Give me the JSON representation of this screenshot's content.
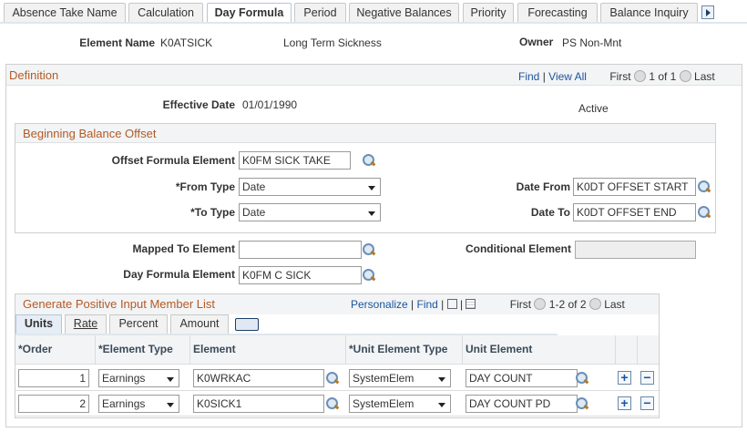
{
  "tabs": [
    {
      "label": "Absence Take Name",
      "active": false
    },
    {
      "label": "Calculation",
      "active": false
    },
    {
      "label": "Day Formula",
      "active": true
    },
    {
      "label": "Period",
      "active": false
    },
    {
      "label": "Negative Balances",
      "active": false
    },
    {
      "label": "Priority",
      "active": false
    },
    {
      "label": "Forecasting",
      "active": false
    },
    {
      "label": "Balance Inquiry",
      "active": false
    }
  ],
  "header": {
    "element_name_label": "Element Name",
    "element_name": "K0ATSICK",
    "description": "Long Term Sickness",
    "owner_label": "Owner",
    "owner": "PS Non-Mnt"
  },
  "definition": {
    "title": "Definition",
    "find": "Find",
    "sep": "|",
    "view_all": "View All",
    "first": "First",
    "count": "1 of 1",
    "last": "Last",
    "effective_date_label": "Effective Date",
    "effective_date": "01/01/1990",
    "status": "Active",
    "bbo": {
      "title": "Beginning Balance Offset",
      "offset_label": "Offset Formula Element",
      "offset_value": "K0FM SICK TAKE",
      "from_type_label": "*From Type",
      "from_type": "Date",
      "to_type_label": "*To Type",
      "to_type": "Date",
      "date_from_label": "Date From",
      "date_from": "K0DT OFFSET START",
      "date_to_label": "Date To",
      "date_to": "K0DT OFFSET END"
    },
    "mapped_label": "Mapped To Element",
    "mapped_value": "",
    "conditional_label": "Conditional Element",
    "conditional_value": "",
    "day_formula_label": "Day Formula Element",
    "day_formula_value": "K0FM C SICK",
    "grid": {
      "title": "Generate Positive Input Member List",
      "personalize": "Personalize",
      "find": "Find",
      "first": "First",
      "count": "1-2 of 2",
      "last": "Last",
      "subtabs": [
        "Units",
        "Rate",
        "Percent",
        "Amount"
      ],
      "columns": [
        "*Order",
        "*Element Type",
        "Element",
        "*Unit Element Type",
        "Unit Element"
      ],
      "rows": [
        {
          "order": "1",
          "element_type": "Earnings",
          "element": "K0WRKAC",
          "unit_element_type": "SystemElem",
          "unit_element": "DAY COUNT"
        },
        {
          "order": "2",
          "element_type": "Earnings",
          "element": "K0SICK1",
          "unit_element_type": "SystemElem",
          "unit_element": "DAY COUNT PD"
        }
      ],
      "add": "+",
      "remove": "−"
    }
  }
}
